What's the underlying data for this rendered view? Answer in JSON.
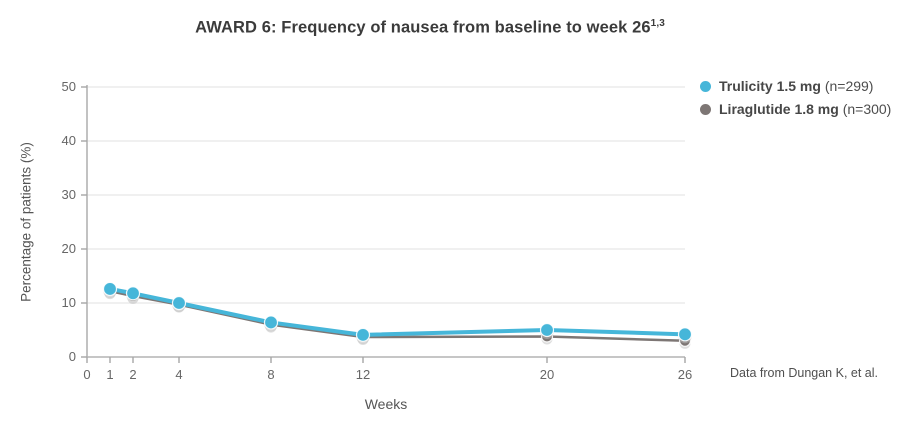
{
  "title": {
    "text": "AWARD 6: Frequency of nausea from baseline to week 26",
    "superscript": "1,3"
  },
  "y_axis_label": "Percentage of patients (%)",
  "x_axis_label": "Weeks",
  "source_note": "Data from Dungan K, et al.",
  "legend": {
    "items": [
      {
        "label": "Trulicity 1.5 mg",
        "n_label": "(n=299)",
        "color": "#46b6d9"
      },
      {
        "label": "Liraglutide 1.8 mg",
        "n_label": "(n=300)",
        "color": "#7d7674"
      }
    ]
  },
  "chart_data": {
    "type": "line",
    "title": "AWARD 6: Frequency of nausea from baseline to week 26",
    "title_superscript": "1,3",
    "xlabel": "Weeks",
    "ylabel": "Percentage of patients (%)",
    "x": [
      1,
      2,
      4,
      8,
      12,
      20,
      26
    ],
    "series": [
      {
        "name": "Trulicity 1.5 mg (n=299)",
        "color": "#46b6d9",
        "values": [
          12.6,
          11.8,
          10.0,
          6.4,
          4.1,
          5.0,
          4.2
        ],
        "line_width": 4,
        "marker_radius": 6.5
      },
      {
        "name": "Liraglutide 1.8 mg (n=300)",
        "color": "#7d7674",
        "values": [
          12.2,
          11.3,
          9.7,
          6.0,
          3.7,
          3.8,
          3.0
        ],
        "line_width": 2.5,
        "marker_radius": 5.5
      }
    ],
    "xlim": [
      0,
      26
    ],
    "ylim": [
      0,
      50
    ],
    "x_ticks": [
      0,
      1,
      2,
      4,
      8,
      12,
      20,
      26
    ],
    "y_ticks": [
      0,
      10,
      20,
      30,
      40,
      50
    ],
    "grid": "horizontal",
    "legend_position": "top-right"
  }
}
